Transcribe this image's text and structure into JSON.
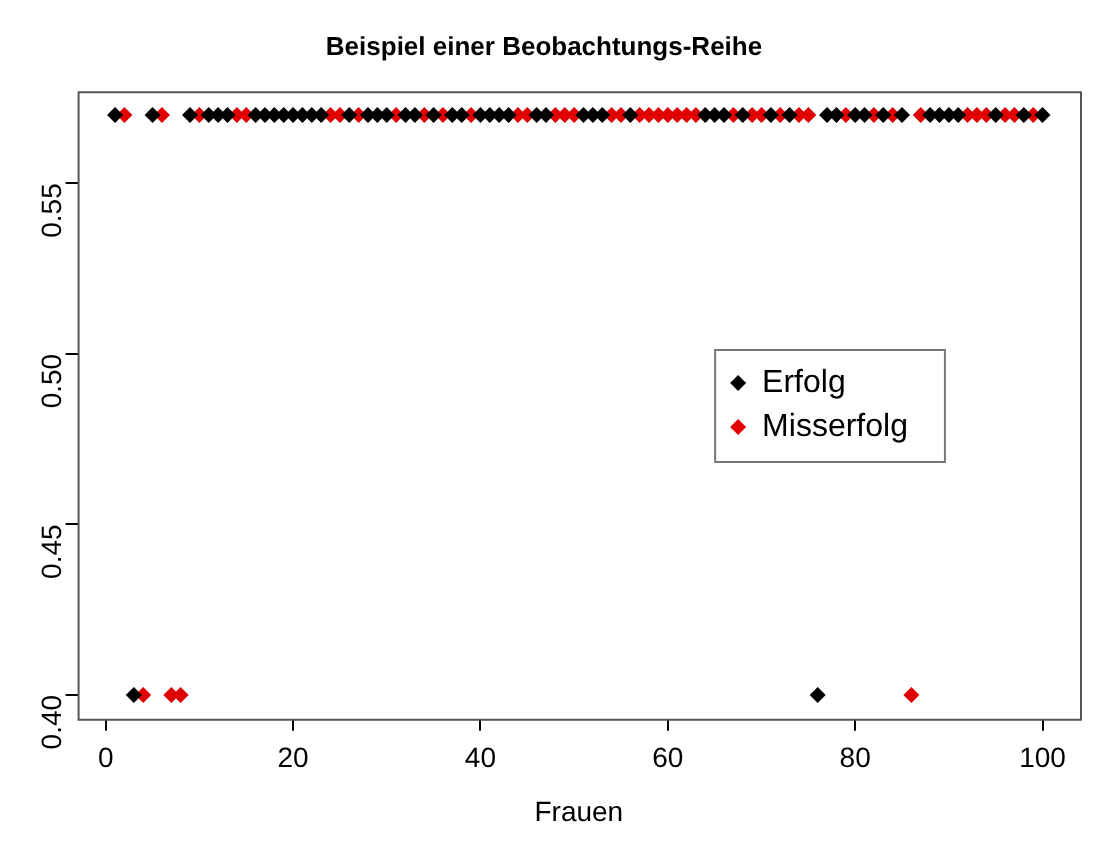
{
  "chart_data": {
    "type": "scatter",
    "title": "Beispiel einer Beobachtungs-Reihe",
    "xlabel": "Frauen",
    "xlim": [
      -3,
      104
    ],
    "ylim": [
      0.393,
      0.577
    ],
    "xticks": [
      0,
      20,
      40,
      60,
      80,
      100
    ],
    "yticks": [
      {
        "value": 0.4,
        "label": "0.40"
      },
      {
        "value": 0.45,
        "label": "0.45"
      },
      {
        "value": 0.5,
        "label": "0.50"
      },
      {
        "value": 0.55,
        "label": "0.55"
      }
    ],
    "grid": false,
    "legend": "right",
    "marker": "diamond",
    "series": [
      {
        "name": "Erfolg",
        "color": "#000000",
        "x": [
          1,
          3,
          5,
          9,
          11,
          12,
          13,
          16,
          17,
          18,
          19,
          20,
          21,
          22,
          23,
          26,
          28,
          29,
          30,
          32,
          33,
          35,
          37,
          38,
          40,
          41,
          42,
          43,
          46,
          47,
          51,
          52,
          53,
          56,
          64,
          65,
          66,
          68,
          71,
          73,
          76,
          77,
          78,
          80,
          81,
          83,
          85,
          88,
          89,
          90,
          91,
          95,
          98,
          100
        ],
        "values": [
          0.57,
          0.4,
          0.57,
          0.57,
          0.57,
          0.57,
          0.57,
          0.57,
          0.57,
          0.57,
          0.57,
          0.57,
          0.57,
          0.57,
          0.57,
          0.57,
          0.57,
          0.57,
          0.57,
          0.57,
          0.57,
          0.57,
          0.57,
          0.57,
          0.57,
          0.57,
          0.57,
          0.57,
          0.57,
          0.57,
          0.57,
          0.57,
          0.57,
          0.57,
          0.57,
          0.57,
          0.57,
          0.57,
          0.57,
          0.57,
          0.4,
          0.57,
          0.57,
          0.57,
          0.57,
          0.57,
          0.57,
          0.57,
          0.57,
          0.57,
          0.57,
          0.57,
          0.57,
          0.57
        ]
      },
      {
        "name": "Misserfolg",
        "color": "#e00000",
        "x": [
          2,
          4,
          6,
          7,
          8,
          10,
          14,
          15,
          24,
          25,
          27,
          31,
          34,
          36,
          39,
          44,
          45,
          48,
          49,
          50,
          54,
          55,
          57,
          58,
          59,
          60,
          61,
          62,
          63,
          67,
          69,
          70,
          72,
          74,
          75,
          79,
          82,
          84,
          86,
          87,
          92,
          93,
          94,
          96,
          97,
          99
        ],
        "values": [
          0.57,
          0.4,
          0.57,
          0.4,
          0.4,
          0.57,
          0.57,
          0.57,
          0.57,
          0.57,
          0.57,
          0.57,
          0.57,
          0.57,
          0.57,
          0.57,
          0.57,
          0.57,
          0.57,
          0.57,
          0.57,
          0.57,
          0.57,
          0.57,
          0.57,
          0.57,
          0.57,
          0.57,
          0.57,
          0.57,
          0.57,
          0.57,
          0.57,
          0.57,
          0.57,
          0.57,
          0.57,
          0.57,
          0.4,
          0.57,
          0.57,
          0.57,
          0.57,
          0.57,
          0.57,
          0.57
        ]
      }
    ]
  }
}
